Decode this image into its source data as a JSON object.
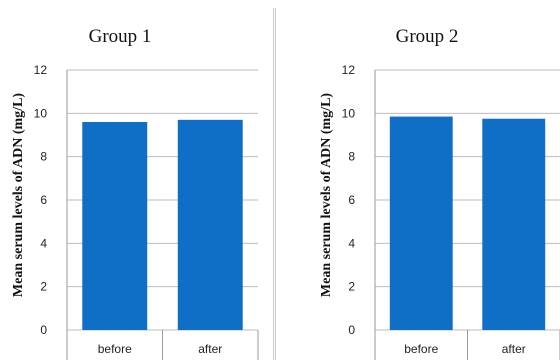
{
  "chart_data": [
    {
      "type": "bar",
      "title": "Group 1",
      "ylabel": "Mean serum levels  of ADN (mg/L)",
      "xlabel": "",
      "categories": [
        "before",
        "after"
      ],
      "values": [
        9.6,
        9.7
      ],
      "ylim": [
        0,
        12
      ],
      "yticks": [
        0,
        2,
        4,
        6,
        8,
        10,
        12
      ],
      "grid": true,
      "bar_color": "#0f6fc6"
    },
    {
      "type": "bar",
      "title": "Group 2",
      "ylabel": "Mean serum levels  of ADN (mg/L)",
      "xlabel": "",
      "categories": [
        "before",
        "after"
      ],
      "values": [
        9.85,
        9.75
      ],
      "ylim": [
        0,
        12
      ],
      "yticks": [
        0,
        2,
        4,
        6,
        8,
        10,
        12
      ],
      "grid": true,
      "bar_color": "#0f6fc6"
    }
  ]
}
